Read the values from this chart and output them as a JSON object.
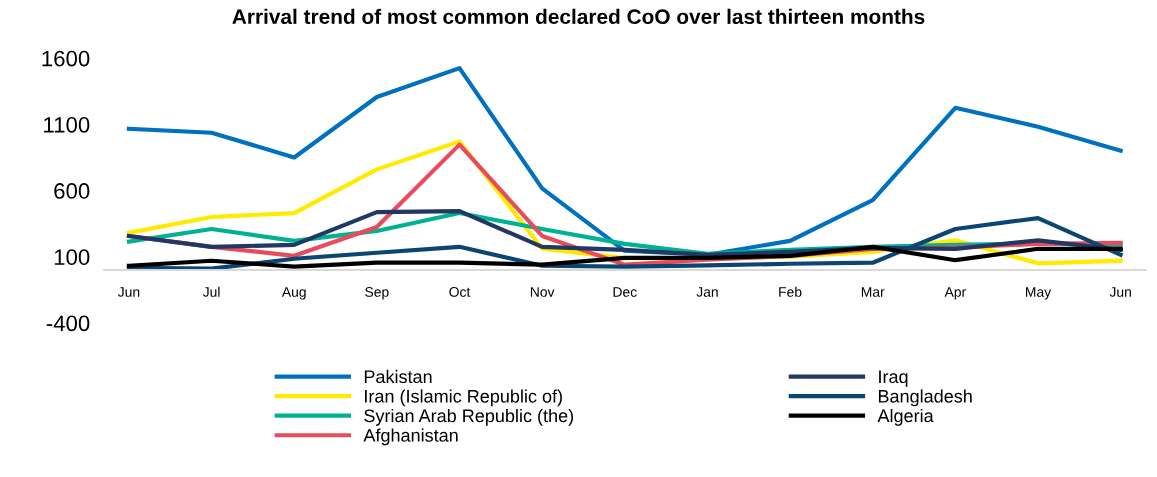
{
  "chart_data": {
    "type": "line",
    "title": "Arrival trend of most common declared CoO over last thirteen months",
    "categories": [
      "Jun",
      "Jul",
      "Aug",
      "Sep",
      "Oct",
      "Nov",
      "Dec",
      "Jan",
      "Feb",
      "Mar",
      "Apr",
      "May",
      "Jun"
    ],
    "series": [
      {
        "name": "Pakistan",
        "color": "#0070c0",
        "values": [
          1067,
          1037,
          850,
          1307,
          1525,
          617,
          145,
          115,
          220,
          527,
          1225,
          1082,
          902
        ]
      },
      {
        "name": "Iran (Islamic Republic of)",
        "color": "#ffea00",
        "values": [
          280,
          400,
          430,
          760,
          970,
          160,
          90,
          90,
          100,
          137,
          224,
          50,
          70
        ]
      },
      {
        "name": "Syrian Arab Republic (the)",
        "color": "#00b294",
        "values": [
          215,
          310,
          220,
          295,
          430,
          310,
          197,
          122,
          152,
          175,
          190,
          200,
          190
        ]
      },
      {
        "name": "Afghanistan",
        "color": "#e84c5c",
        "values": [
          257,
          175,
          107,
          325,
          947,
          257,
          40,
          77,
          107,
          160,
          171,
          197,
          205
        ]
      },
      {
        "name": "Iraq",
        "color": "#1f3864",
        "values": [
          257,
          175,
          190,
          437,
          445,
          175,
          152,
          115,
          137,
          167,
          160,
          224,
          152
        ]
      },
      {
        "name": "Bangladesh",
        "color": "#0b4571",
        "values": [
          16,
          10,
          85,
          130,
          175,
          32,
          25,
          35,
          47,
          55,
          310,
          392,
          115
        ]
      },
      {
        "name": "Algeria",
        "color": "#000000",
        "values": [
          32,
          70,
          25,
          55,
          55,
          40,
          92,
          92,
          107,
          175,
          74,
          160,
          160
        ]
      }
    ],
    "ylim": [
      -400,
      1600
    ],
    "yticks": [
      -400,
      100,
      600,
      1100,
      1600
    ],
    "grid": false,
    "legend": "bottom",
    "line_style": "solid",
    "marker": "none"
  }
}
